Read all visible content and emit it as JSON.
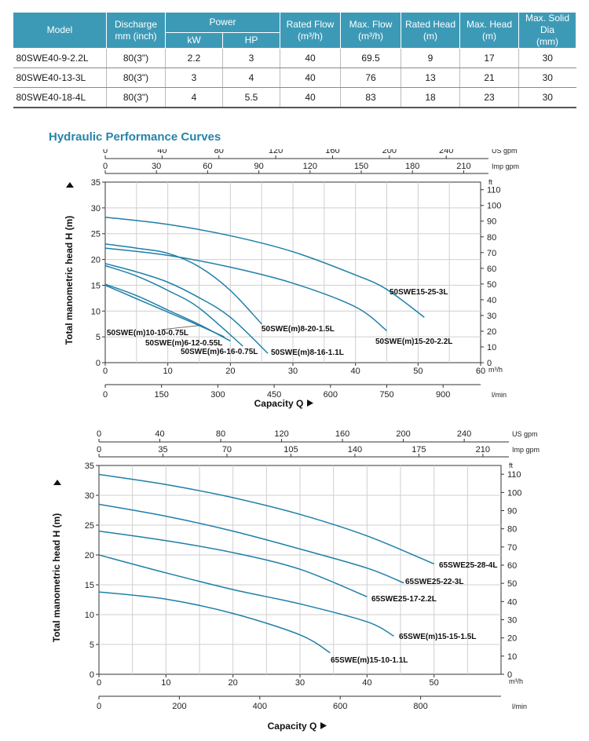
{
  "table": {
    "headers": {
      "model": "Model",
      "discharge": [
        "Discharge",
        "mm (inch)"
      ],
      "power": "Power",
      "kw": "kW",
      "hp": "HP",
      "rated_flow": [
        "Rated Flow",
        "(m³/h)"
      ],
      "max_flow": [
        "Max. Flow",
        "(m³/h)"
      ],
      "rated_head": [
        "Rated Head",
        "(m)"
      ],
      "max_head": [
        "Max. Head",
        "(m)"
      ],
      "max_solid": [
        "Max. Solid Dia",
        "(mm)"
      ]
    },
    "rows": [
      {
        "model": "80SWE40-9-2.2L",
        "discharge": "80(3\")",
        "kw": "2.2",
        "hp": "3",
        "rated_flow": "40",
        "max_flow": "69.5",
        "rated_head": "9",
        "max_head": "17",
        "max_solid": "30"
      },
      {
        "model": "80SWE40-13-3L",
        "discharge": "80(3\")",
        "kw": "3",
        "hp": "4",
        "rated_flow": "40",
        "max_flow": "76",
        "rated_head": "13",
        "max_head": "21",
        "max_solid": "30"
      },
      {
        "model": "80SWE40-18-4L",
        "discharge": "80(3\")",
        "kw": "4",
        "hp": "5.5",
        "rated_flow": "40",
        "max_flow": "83",
        "rated_head": "18",
        "max_head": "23",
        "max_solid": "30"
      }
    ]
  },
  "section_title": "Hydraulic Performance Curves",
  "chart_data": [
    {
      "type": "line",
      "ylabel": "Total manometric head H (m)",
      "xlabel": "Capacity Q",
      "x_unit": "m³/h",
      "xlim": [
        0,
        60
      ],
      "ylim": [
        0,
        35
      ],
      "grid": true,
      "x_ticks": [
        0,
        10,
        20,
        30,
        40,
        50,
        60
      ],
      "y_ticks": [
        0,
        5,
        10,
        15,
        20,
        25,
        30,
        35
      ],
      "secondary_axes": {
        "us_gpm": {
          "label": "US gpm",
          "ticks": [
            0,
            40,
            80,
            120,
            160,
            200,
            240
          ]
        },
        "imp_gpm": {
          "label": "Imp gpm",
          "ticks": [
            0,
            30,
            60,
            90,
            120,
            150,
            180,
            210
          ]
        },
        "ft": {
          "label": "ft",
          "ticks": [
            0,
            10,
            20,
            30,
            40,
            50,
            60,
            70,
            80,
            90,
            100,
            110
          ]
        },
        "lmin": {
          "label": "l/min",
          "ticks": [
            0,
            150,
            300,
            450,
            600,
            750,
            900
          ]
        }
      },
      "series": [
        {
          "name": "50SWE15-25-3L",
          "color": "#1e7fa8",
          "x": [
            0,
            10,
            20,
            30,
            40,
            45,
            51
          ],
          "y": [
            28.2,
            26.8,
            24.6,
            21.5,
            17,
            14.2,
            8.8
          ]
        },
        {
          "name": "50SWE(m)15-20-2.2L",
          "color": "#1e7fa8",
          "x": [
            0,
            10,
            20,
            30,
            40,
            45
          ],
          "y": [
            22.2,
            20.8,
            18.5,
            15.4,
            10.8,
            6.2
          ]
        },
        {
          "name": "50SWE(m)8-20-1.5L",
          "color": "#1e7fa8",
          "x": [
            0,
            5,
            10,
            15,
            20,
            25
          ],
          "y": [
            23,
            22.2,
            21.2,
            18.6,
            14,
            7.5
          ]
        },
        {
          "name": "50SWE(m)8-16-1.1L",
          "color": "#1e7fa8",
          "x": [
            0,
            5,
            10,
            15,
            20,
            26
          ],
          "y": [
            19.2,
            17.6,
            15.6,
            12.6,
            8.8,
            1.8
          ]
        },
        {
          "name": "50SWE(m)6-16-0.75L",
          "color": "#1e7fa8",
          "x": [
            0,
            5,
            10,
            15,
            22
          ],
          "y": [
            18.8,
            16.8,
            14,
            10.6,
            3.2
          ]
        },
        {
          "name": "50SWE(m)6-12-0.55L",
          "color": "#1e7fa8",
          "x": [
            0,
            5,
            10,
            15,
            20
          ],
          "y": [
            15.2,
            13,
            10.2,
            7.4,
            4.2
          ]
        },
        {
          "name": "50SWE(m)10-10-0.75L",
          "color": "#1e7fa8",
          "x": [
            0,
            5,
            10,
            15,
            19
          ],
          "y": [
            15,
            12.4,
            9.8,
            7.2,
            5
          ]
        }
      ]
    },
    {
      "type": "line",
      "ylabel": "Total manometric head H (m)",
      "xlabel": "Capacity Q",
      "x_unit": "m³/h",
      "xlim": [
        0,
        60
      ],
      "ylim": [
        0,
        35
      ],
      "grid": true,
      "x_ticks": [
        0,
        10,
        20,
        30,
        40,
        50
      ],
      "y_ticks": [
        0,
        5,
        10,
        15,
        20,
        25,
        30,
        35
      ],
      "secondary_axes": {
        "us_gpm": {
          "label": "US gpm",
          "ticks": [
            0,
            40,
            80,
            120,
            160,
            200,
            240
          ]
        },
        "imp_gpm": {
          "label": "Imp gpm",
          "ticks": [
            0,
            35,
            70,
            105,
            140,
            175,
            210
          ]
        },
        "ft": {
          "label": "ft",
          "ticks": [
            0,
            10,
            20,
            30,
            40,
            50,
            60,
            70,
            80,
            90,
            100,
            110
          ]
        },
        "lmin": {
          "label": "l/min",
          "ticks": [
            0,
            200,
            400,
            600,
            800
          ]
        }
      },
      "series": [
        {
          "name": "65SWE25-28-4L",
          "color": "#1e7fa8",
          "x": [
            0,
            10,
            20,
            30,
            40,
            50
          ],
          "y": [
            33.5,
            31.8,
            29.6,
            26.8,
            23.2,
            18.5
          ]
        },
        {
          "name": "65SWE25-22-3L",
          "color": "#1e7fa8",
          "x": [
            0,
            10,
            20,
            30,
            40,
            45.5
          ],
          "y": [
            28.5,
            26.5,
            24,
            21,
            17.8,
            15.3
          ]
        },
        {
          "name": "65SWE25-17-2.2L",
          "color": "#1e7fa8",
          "x": [
            0,
            10,
            20,
            30,
            40
          ],
          "y": [
            24,
            22.4,
            20.4,
            17.6,
            13
          ]
        },
        {
          "name": "65SWE(m)15-15-1.5L",
          "color": "#1e7fa8",
          "x": [
            0,
            10,
            20,
            30,
            40,
            44
          ],
          "y": [
            20,
            17,
            14.2,
            11.8,
            8.8,
            6.4
          ]
        },
        {
          "name": "65SWE(m)15-10-1.1L",
          "color": "#1e7fa8",
          "x": [
            0,
            10,
            20,
            30,
            34.5
          ],
          "y": [
            13.8,
            12.6,
            10.2,
            6.6,
            3.6
          ]
        }
      ]
    }
  ]
}
